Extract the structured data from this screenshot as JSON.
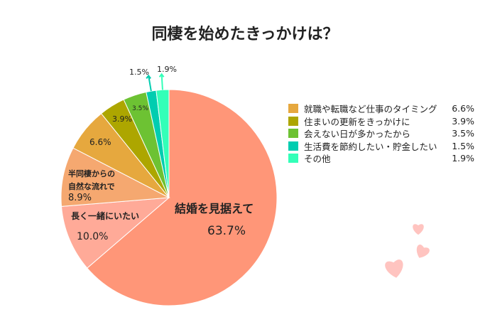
{
  "chart_data": {
    "type": "pie",
    "title": "同棲を始めたきっかけは？",
    "categories": [
      "結婚を見据えて",
      "長く一緒にいたい",
      "半同棲からの\n自然な流れで",
      "就職や転職など仕事のタイミング",
      "住まいの更新をきっかけに",
      "会えない日が多かったから",
      "生活費を節約したい・貯金したい",
      "その他"
    ],
    "values": [
      63.7,
      10.0,
      8.9,
      6.6,
      3.9,
      3.5,
      1.5,
      1.9
    ],
    "value_labels": [
      "63.7%",
      "10.0%",
      "8.9%",
      "6.6%",
      "3.9%",
      "3.5%",
      "1.5%",
      "1.9%"
    ],
    "colors": [
      "#FF9678",
      "#FFAA98",
      "#F5A870",
      "#E6A83E",
      "#ADA600",
      "#6DC233",
      "#00CDB0",
      "#33FFB8"
    ],
    "legend_placement": "right",
    "start_angle": "top, clockwise"
  },
  "decoration": {
    "heart_color": "#FFC4C0"
  }
}
